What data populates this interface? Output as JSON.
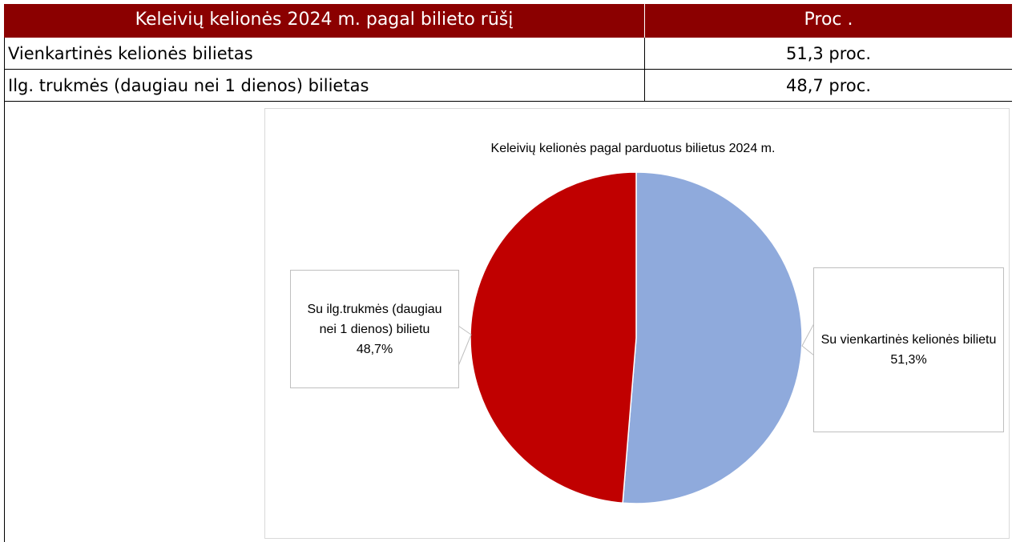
{
  "table": {
    "header": [
      "Keleivių kelionės 2024 m. pagal bilieto rūšį",
      "Proc ."
    ],
    "rows": [
      [
        "Vienkartinės kelionės bilietas",
        "51,3 proc."
      ],
      [
        "Ilg. trukmės (daugiau nei 1 dienos) bilietas",
        "48,7 proc."
      ]
    ]
  },
  "chart_data": {
    "type": "pie",
    "title": "Keleivių kelionės pagal parduotus bilietus 2024 m.",
    "categories": [
      "Su vienkartinės kelionės bilietu",
      "Su ilg.trukmės (daugiau nei 1 dienos) bilietu"
    ],
    "values": [
      51.3,
      48.7
    ],
    "value_labels": [
      "51,3%",
      "48,7%"
    ],
    "colors": [
      "#8faadc",
      "#c00000"
    ]
  }
}
